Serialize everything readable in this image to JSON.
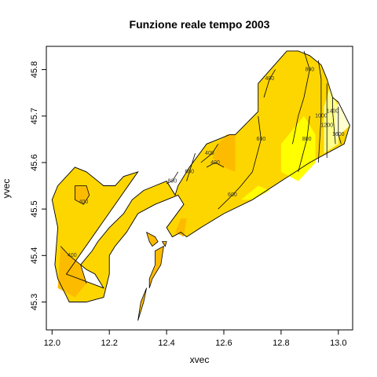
{
  "chart_data": {
    "type": "heatmap",
    "title": "Funzione reale tempo 2003",
    "xlabel": "xvec",
    "ylabel": "yvec",
    "xlim": [
      11.98,
      13.05
    ],
    "ylim": [
      45.24,
      45.85
    ],
    "x_ticks": [
      12.0,
      12.2,
      12.4,
      12.6,
      12.8,
      13.0
    ],
    "x_tick_labels": [
      "12.0",
      "12.2",
      "12.4",
      "12.6",
      "12.8",
      "13.0"
    ],
    "y_ticks": [
      45.3,
      45.4,
      45.5,
      45.6,
      45.7,
      45.8
    ],
    "y_tick_labels": [
      "45.3",
      "45.4",
      "45.5",
      "45.6",
      "45.7",
      "45.8"
    ],
    "grid": false,
    "legend": "none",
    "colors": {
      "orange": "#fdbb00",
      "gold": "#fdd600",
      "yellow": "#ffff00",
      "lightyellow": "#ffff8c",
      "paleyellow": "#ffffd0",
      "outline": "#000000"
    },
    "domain_outline": [
      [
        12.05,
        45.36
      ],
      [
        12.18,
        45.33
      ],
      [
        12.15,
        45.36
      ],
      [
        12.12,
        45.37
      ],
      [
        12.1,
        45.38
      ],
      [
        12.14,
        45.41
      ],
      [
        12.16,
        45.43
      ],
      [
        12.2,
        45.46
      ],
      [
        12.25,
        45.49
      ],
      [
        12.28,
        45.52
      ],
      [
        12.32,
        45.54
      ],
      [
        12.36,
        45.55
      ],
      [
        12.4,
        45.56
      ],
      [
        12.43,
        45.53
      ],
      [
        12.44,
        45.55
      ],
      [
        12.48,
        45.59
      ],
      [
        12.54,
        45.64
      ],
      [
        12.58,
        45.65
      ],
      [
        12.62,
        45.66
      ],
      [
        12.64,
        45.66
      ],
      [
        12.72,
        45.71
      ],
      [
        12.72,
        45.77
      ],
      [
        12.82,
        45.84
      ],
      [
        12.86,
        45.84
      ],
      [
        12.9,
        45.83
      ],
      [
        12.94,
        45.81
      ],
      [
        12.96,
        45.78
      ],
      [
        12.98,
        45.74
      ],
      [
        13.0,
        45.73
      ],
      [
        13.04,
        45.68
      ],
      [
        13.02,
        45.64
      ],
      [
        12.9,
        45.6
      ],
      [
        12.8,
        45.56
      ],
      [
        12.7,
        45.52
      ],
      [
        12.6,
        45.49
      ],
      [
        12.52,
        45.46
      ],
      [
        12.47,
        45.44
      ],
      [
        12.45,
        45.45
      ],
      [
        12.42,
        45.44
      ],
      [
        12.4,
        45.46
      ],
      [
        12.46,
        45.51
      ],
      [
        12.44,
        45.53
      ],
      [
        12.4,
        45.52
      ],
      [
        12.36,
        45.51
      ],
      [
        12.3,
        45.49
      ],
      [
        12.26,
        45.45
      ],
      [
        12.22,
        45.42
      ],
      [
        12.2,
        45.4
      ],
      [
        12.2,
        45.36
      ],
      [
        12.18,
        45.31
      ],
      [
        12.12,
        45.3
      ],
      [
        12.06,
        45.3
      ],
      [
        12.02,
        45.35
      ],
      [
        12.01,
        45.38
      ],
      [
        12.02,
        45.46
      ],
      [
        12.0,
        45.52
      ],
      [
        12.02,
        45.55
      ],
      [
        12.08,
        45.59
      ],
      [
        12.12,
        45.58
      ],
      [
        12.18,
        45.55
      ],
      [
        12.22,
        45.55
      ],
      [
        12.25,
        45.57
      ],
      [
        12.3,
        45.58
      ]
    ],
    "islands": [
      [
        [
          12.33,
          45.45
        ],
        [
          12.36,
          45.44
        ],
        [
          12.37,
          45.43
        ],
        [
          12.35,
          45.42
        ],
        [
          12.34,
          45.43
        ]
      ],
      [
        [
          12.385,
          45.43
        ],
        [
          12.4,
          45.43
        ],
        [
          12.395,
          45.42
        ]
      ],
      [
        [
          12.36,
          45.41
        ],
        [
          12.39,
          45.42
        ],
        [
          12.38,
          45.38
        ],
        [
          12.35,
          45.35
        ],
        [
          12.34,
          45.33
        ],
        [
          12.34,
          45.35
        ],
        [
          12.36,
          45.38
        ]
      ],
      [
        [
          12.3,
          45.26
        ],
        [
          12.31,
          45.3
        ],
        [
          12.33,
          45.33
        ],
        [
          12.32,
          45.3
        ]
      ]
    ],
    "regions": [
      {
        "color": "orange",
        "polygon": [
          [
            12.08,
            45.55
          ],
          [
            12.12,
            45.55
          ],
          [
            12.13,
            45.53
          ],
          [
            12.11,
            45.51
          ],
          [
            12.08,
            45.52
          ]
        ]
      },
      {
        "color": "orange",
        "polygon": [
          [
            12.02,
            45.33
          ],
          [
            12.03,
            45.42
          ],
          [
            12.06,
            45.4
          ],
          [
            12.1,
            45.38
          ],
          [
            12.12,
            45.34
          ],
          [
            12.08,
            45.31
          ]
        ]
      },
      {
        "color": "orange",
        "polygon": [
          [
            12.56,
            45.61
          ],
          [
            12.58,
            45.64
          ],
          [
            12.61,
            45.66
          ],
          [
            12.64,
            45.66
          ],
          [
            12.64,
            45.58
          ],
          [
            12.6,
            45.59
          ]
        ]
      },
      {
        "color": "orange",
        "polygon": [
          [
            12.43,
            45.45
          ],
          [
            12.45,
            45.48
          ],
          [
            12.47,
            45.48
          ],
          [
            12.46,
            45.44
          ]
        ]
      },
      {
        "color": "yellow",
        "polygon": [
          [
            12.86,
            45.56
          ],
          [
            12.92,
            45.6
          ],
          [
            12.92,
            45.66
          ],
          [
            12.88,
            45.7
          ],
          [
            12.8,
            45.64
          ],
          [
            12.8,
            45.58
          ]
        ]
      },
      {
        "color": "yellow",
        "polygon": [
          [
            12.66,
            45.52
          ],
          [
            12.72,
            45.55
          ],
          [
            12.76,
            45.54
          ],
          [
            12.7,
            45.52
          ]
        ]
      },
      {
        "color": "lightyellow",
        "polygon": [
          [
            12.95,
            45.62
          ],
          [
            13.0,
            45.64
          ],
          [
            13.0,
            45.72
          ],
          [
            12.97,
            45.76
          ],
          [
            12.95,
            45.72
          ]
        ]
      },
      {
        "color": "paleyellow",
        "polygon": [
          [
            12.99,
            45.65
          ],
          [
            13.04,
            45.68
          ],
          [
            13.0,
            45.73
          ],
          [
            12.99,
            45.7
          ]
        ]
      }
    ],
    "contours": [
      {
        "level": 400,
        "label_at": [
          12.11,
          45.515
        ],
        "points": [
          [
            12.08,
            45.55
          ],
          [
            12.12,
            45.55
          ],
          [
            12.13,
            45.53
          ],
          [
            12.11,
            45.51
          ],
          [
            12.08,
            45.52
          ],
          [
            12.08,
            45.55
          ]
        ]
      },
      {
        "level": 400,
        "label_at": [
          12.07,
          45.4
        ],
        "points": [
          [
            12.03,
            45.42
          ],
          [
            12.06,
            45.4
          ],
          [
            12.1,
            45.38
          ],
          [
            12.12,
            45.34
          ]
        ]
      },
      {
        "level": 400,
        "label_at": [
          12.55,
          45.62
        ],
        "points": [
          [
            12.52,
            45.6
          ],
          [
            12.56,
            45.62
          ],
          [
            12.58,
            45.64
          ]
        ]
      },
      {
        "level": 400,
        "label_at": [
          12.57,
          45.6
        ],
        "points": [
          [
            12.54,
            45.59
          ],
          [
            12.57,
            45.6
          ],
          [
            12.6,
            45.59
          ]
        ]
      },
      {
        "level": 400,
        "label_at": [
          12.76,
          45.78
        ],
        "points": [
          [
            12.74,
            45.74
          ],
          [
            12.76,
            45.78
          ],
          [
            12.78,
            45.8
          ]
        ]
      },
      {
        "level": 600,
        "label_at": [
          12.48,
          45.58
        ],
        "points": [
          [
            12.47,
            45.56
          ],
          [
            12.48,
            45.58
          ],
          [
            12.5,
            45.62
          ]
        ]
      },
      {
        "level": 800,
        "label_at": [
          12.42,
          45.56
        ],
        "points": [
          [
            12.4,
            45.555
          ],
          [
            12.42,
            45.56
          ],
          [
            12.44,
            45.58
          ]
        ]
      },
      {
        "level": 600,
        "label_at": [
          12.63,
          45.53
        ],
        "points": [
          [
            12.58,
            45.5
          ],
          [
            12.63,
            45.53
          ],
          [
            12.66,
            45.55
          ],
          [
            12.7,
            45.58
          ]
        ]
      },
      {
        "level": 600,
        "label_at": [
          12.73,
          45.65
        ],
        "points": [
          [
            12.7,
            45.58
          ],
          [
            12.73,
            45.65
          ],
          [
            12.72,
            45.7
          ]
        ]
      },
      {
        "level": 800,
        "label_at": [
          12.9,
          45.8
        ],
        "points": [
          [
            12.88,
            45.84
          ],
          [
            12.9,
            45.8
          ],
          [
            12.88,
            45.74
          ],
          [
            12.86,
            45.7
          ],
          [
            12.84,
            45.64
          ]
        ]
      },
      {
        "level": 800,
        "label_at": [
          12.89,
          45.65
        ],
        "points": [
          [
            12.86,
            45.58
          ],
          [
            12.89,
            45.65
          ],
          [
            12.9,
            45.7
          ]
        ]
      },
      {
        "level": 1000,
        "label_at": [
          12.94,
          45.7
        ],
        "points": [
          [
            12.93,
            45.6
          ],
          [
            12.94,
            45.7
          ],
          [
            12.94,
            45.78
          ],
          [
            12.93,
            45.82
          ]
        ]
      },
      {
        "level": 1200,
        "label_at": [
          12.96,
          45.68
        ],
        "points": [
          [
            12.96,
            45.61
          ],
          [
            12.96,
            45.68
          ],
          [
            12.96,
            45.77
          ]
        ]
      },
      {
        "level": 1400,
        "label_at": [
          12.98,
          45.71
        ],
        "points": [
          [
            12.99,
            45.64
          ],
          [
            12.98,
            45.71
          ],
          [
            12.98,
            45.74
          ]
        ]
      },
      {
        "level": 1600,
        "label_at": [
          13.0,
          45.66
        ],
        "points": [
          [
            13.01,
            45.64
          ],
          [
            13.0,
            45.66
          ],
          [
            13.0,
            45.72
          ]
        ]
      }
    ],
    "contour_labels": [
      "400",
      "400",
      "400",
      "400",
      "400",
      "600",
      "800",
      "600",
      "600",
      "800",
      "800",
      "1000",
      "1200",
      "1400",
      "1600"
    ]
  }
}
